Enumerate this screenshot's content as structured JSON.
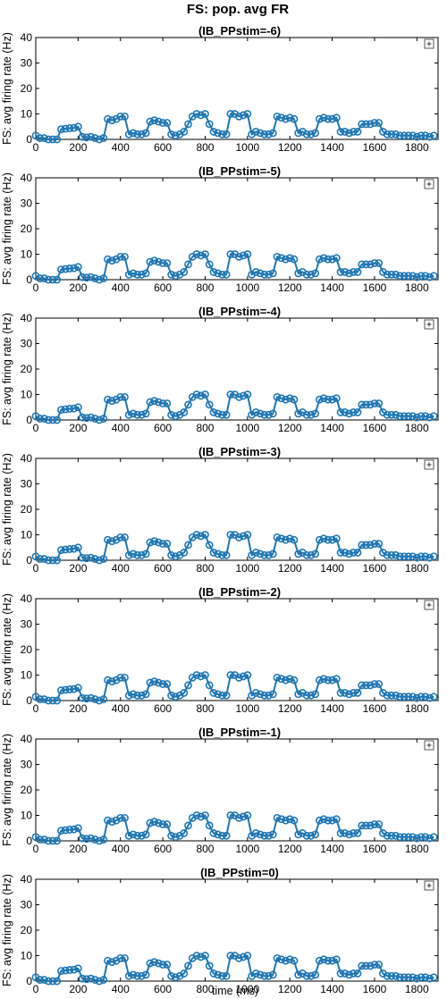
{
  "figure": {
    "title": "FS: pop. avg FR",
    "xlabel": "time (ms)"
  },
  "colors": {
    "series": "#1f77b4",
    "axis": "#000000",
    "background": "#ffffff"
  },
  "chart_data": {
    "type": "line",
    "xlim": [
      0,
      1900
    ],
    "ylim": [
      0,
      40
    ],
    "xticks": [
      0,
      200,
      400,
      600,
      800,
      1000,
      1200,
      1400,
      1600,
      1800
    ],
    "yticks": [
      0,
      10,
      20,
      30,
      40
    ],
    "marker": "circle",
    "legend": "top-right",
    "panels": [
      {
        "title": "(IB_PPstim=-6)",
        "ylabel": "FS: avg firing rate (Hz)"
      },
      {
        "title": "(IB_PPstim=-5)",
        "ylabel": "FS: avg firing rate (Hz)"
      },
      {
        "title": "(IB_PPstim=-4)",
        "ylabel": "FS: avg firing rate (Hz)"
      },
      {
        "title": "(IB_PPstim=-3)",
        "ylabel": "FS: avg firing rate (Hz)"
      },
      {
        "title": "(IB_PPstim=-2)",
        "ylabel": "FS: avg firing rate (Hz)"
      },
      {
        "title": "(IB_PPstim=-1)",
        "ylabel": "FS: avg firing rate (Hz)"
      },
      {
        "title": "(IB_PPstim=0)",
        "ylabel": "FS: avg firing rate (Hz)"
      }
    ],
    "x": [
      0,
      20,
      40,
      60,
      80,
      100,
      120,
      140,
      160,
      180,
      200,
      220,
      240,
      260,
      280,
      300,
      320,
      340,
      360,
      380,
      400,
      420,
      440,
      460,
      480,
      500,
      520,
      540,
      560,
      580,
      600,
      620,
      640,
      660,
      680,
      700,
      720,
      740,
      760,
      780,
      800,
      820,
      840,
      860,
      880,
      900,
      920,
      940,
      960,
      980,
      1000,
      1020,
      1040,
      1060,
      1080,
      1100,
      1120,
      1140,
      1160,
      1180,
      1200,
      1220,
      1240,
      1260,
      1280,
      1300,
      1320,
      1340,
      1360,
      1380,
      1400,
      1420,
      1440,
      1460,
      1480,
      1500,
      1520,
      1540,
      1560,
      1580,
      1600,
      1620,
      1640,
      1660,
      1680,
      1700,
      1720,
      1740,
      1760,
      1780,
      1800,
      1820,
      1840,
      1860,
      1880
    ],
    "y": [
      1.5,
      0.5,
      0.5,
      0,
      0,
      0,
      4,
      4.2,
      4.4,
      4.5,
      5,
      1,
      0.8,
      1,
      0.5,
      0,
      0.5,
      8,
      7.5,
      8,
      9,
      9,
      2,
      2.5,
      2,
      2,
      2.5,
      7,
      7.5,
      7,
      6.5,
      6.5,
      2,
      1.5,
      2,
      3,
      6,
      9,
      10,
      9.5,
      10,
      6,
      3,
      2.5,
      2,
      2,
      10,
      10,
      9,
      9.5,
      10,
      2,
      3,
      2.5,
      2,
      2,
      2.5,
      9,
      8.5,
      8,
      8.5,
      8,
      2.5,
      3,
      2,
      2,
      2.5,
      8,
      8.5,
      8,
      8,
      8.5,
      3,
      3,
      2.5,
      3,
      3,
      6,
      6,
      6,
      6.5,
      6.5,
      3,
      2,
      2,
      2,
      1.5,
      1.5,
      1.5,
      1.5,
      1,
      1.5,
      1.5,
      1,
      1.5
    ]
  }
}
